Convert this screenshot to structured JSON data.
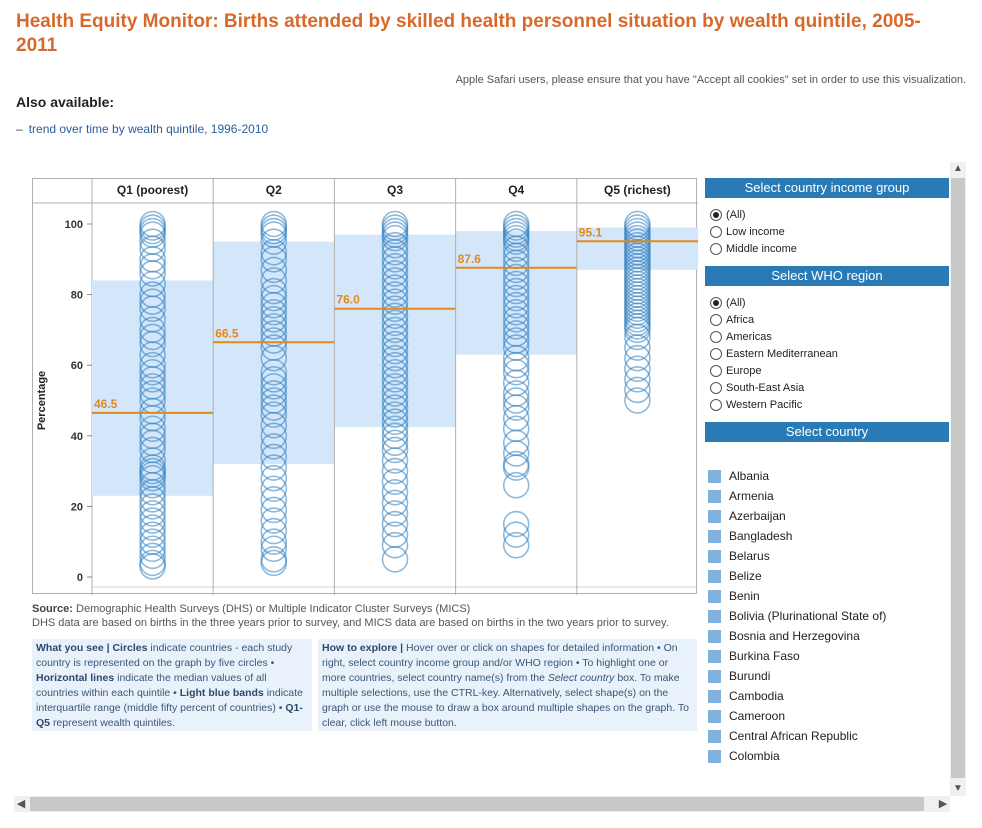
{
  "title": "Health Equity Monitor: Births attended by skilled health personnel situation by wealth quintile, 2005-2011",
  "safari_note": "Apple Safari users, please ensure that you have \"Accept all cookies\" set in order to use this visualization.",
  "also_available_label": "Also available:",
  "trend_link": "trend over time by wealth quintile, 1996-2010",
  "trend_dash": "–",
  "source": {
    "label": "Source:",
    "text": "Demographic Health Surveys (DHS) or Multiple Indicator Cluster Surveys (MICS)",
    "line2": "DHS data are based on births in the three years prior to survey, and MICS data are based on births in the two years prior to survey."
  },
  "what_you_see": {
    "heading": "What you see |",
    "circles_label": "Circles",
    "circles_text": "indicate countries - each study country is represented on the graph by five circles •",
    "lines_label": "Horizontal lines",
    "lines_text": "indicate the median values of all countries within each quintile •",
    "bands_label": "Light blue bands",
    "bands_text": "indicate interquartile range (middle fifty percent of countries) •",
    "q_label": "Q1-Q5",
    "q_text": "represent wealth quintiles."
  },
  "how_to_explore": {
    "heading": "How to explore |",
    "text1": "Hover over or click on shapes for detailed information • On right, select country income group and/or WHO region • To highlight one or more countries, select country name(s) from the",
    "italic": "Select country",
    "text2": "box. To make multiple selections, use the CTRL-key. Alternatively, select shape(s) on the graph or use the mouse to draw a box around multiple shapes on the graph. To clear, click left mouse button."
  },
  "income_panel": {
    "title": "Select country income group",
    "options": [
      "(All)",
      "Low income",
      "Middle income"
    ],
    "selected": "(All)"
  },
  "region_panel": {
    "title": "Select WHO region",
    "options": [
      "(All)",
      "Africa",
      "Americas",
      "Eastern Mediterranean",
      "Europe",
      "South-East Asia",
      "Western Pacific"
    ],
    "selected": "(All)"
  },
  "country_panel": {
    "title": "Select country",
    "countries": [
      "Albania",
      "Armenia",
      "Azerbaijan",
      "Bangladesh",
      "Belarus",
      "Belize",
      "Benin",
      "Bolivia (Plurinational State of)",
      "Bosnia and Herzegovina",
      "Burkina Faso",
      "Burundi",
      "Cambodia",
      "Cameroon",
      "Central African Republic",
      "Colombia"
    ]
  },
  "colors": {
    "title": "#d9692a",
    "median": "#e08a1e",
    "band": "#d4e7fa",
    "circle": "#2f7fbf",
    "panel_header": "#2a7bb5"
  },
  "chart_data": {
    "type": "scatter",
    "ylabel": "Percentage",
    "ylim": [
      0,
      100
    ],
    "yticks": [
      0,
      20,
      40,
      60,
      80,
      100
    ],
    "categories": [
      "Q1 (poorest)",
      "Q2",
      "Q3",
      "Q4",
      "Q5 (richest)"
    ],
    "medians": [
      46.5,
      66.5,
      76.0,
      87.6,
      95.1
    ],
    "iqr": [
      [
        23,
        84
      ],
      [
        32,
        95
      ],
      [
        42.5,
        97
      ],
      [
        63,
        98
      ],
      [
        87,
        99
      ]
    ],
    "series": [
      {
        "values": [
          100,
          99,
          98,
          97,
          95,
          93,
          90,
          88,
          86,
          83,
          80,
          78,
          76,
          73,
          70,
          68,
          66,
          63,
          60,
          58,
          56,
          54,
          52,
          50,
          47,
          45,
          42,
          40,
          38,
          36,
          33,
          31,
          30,
          29,
          28,
          26,
          24,
          22,
          20,
          18,
          16,
          14,
          12,
          10,
          8,
          6,
          4,
          3
        ]
      },
      {
        "values": [
          100,
          99,
          98,
          97,
          95,
          92,
          90,
          87,
          84,
          81,
          79,
          77,
          75,
          73,
          71,
          69,
          67,
          65,
          62,
          58,
          56,
          54,
          52,
          50,
          48,
          46,
          43,
          40,
          37,
          34,
          31,
          28,
          25,
          22,
          19,
          16,
          13,
          10,
          8,
          5,
          4
        ]
      },
      {
        "values": [
          100,
          99,
          98,
          97,
          96,
          94,
          92,
          90,
          88,
          86,
          84,
          82,
          80,
          78,
          76,
          74,
          72,
          70,
          68,
          66,
          64,
          62,
          60,
          58,
          56,
          54,
          52,
          50,
          48,
          46,
          44,
          42,
          40,
          38,
          36,
          33,
          30,
          27,
          24,
          21,
          18,
          15,
          12,
          9,
          5
        ]
      },
      {
        "values": [
          100,
          99,
          98,
          97,
          96,
          95,
          93,
          91,
          89,
          87,
          85,
          83,
          81,
          79,
          77,
          75,
          73,
          71,
          69,
          67,
          65,
          62,
          60,
          58,
          55,
          52,
          50,
          48,
          45,
          42,
          38,
          35,
          32,
          31,
          26,
          15,
          12,
          9
        ]
      },
      {
        "values": [
          100,
          99,
          98,
          97,
          96,
          95,
          94,
          93,
          92,
          91,
          90,
          89,
          88,
          87,
          86,
          85,
          84,
          83,
          82,
          81,
          80,
          79,
          78,
          77,
          76,
          75,
          74,
          73,
          72,
          71,
          70,
          68,
          65,
          62,
          59,
          56,
          53,
          50
        ]
      }
    ]
  }
}
